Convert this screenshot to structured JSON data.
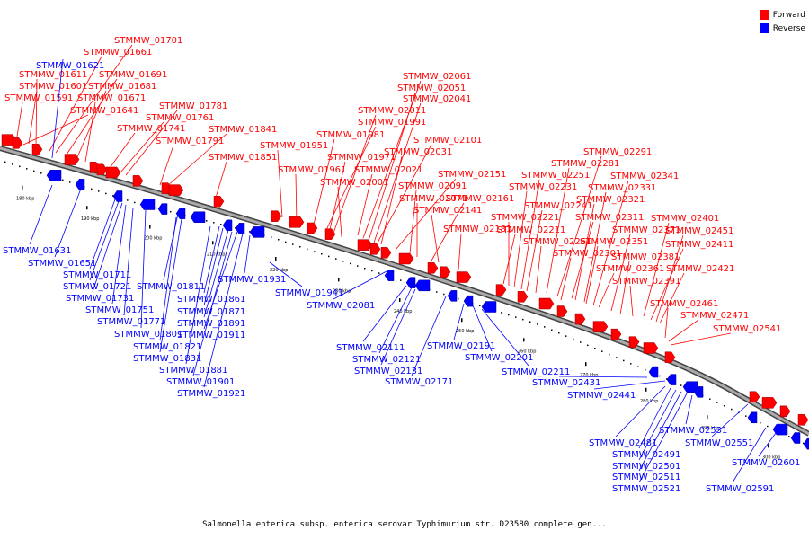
{
  "caption": "Salmonella enterica subsp. enterica serovar Typhimurium str. D23580 complete gen...",
  "legend": [
    {
      "label": "Forward",
      "color": "#ff0000"
    },
    {
      "label": "Reverse",
      "color": "#0000ff"
    }
  ],
  "colors": {
    "forward": "#ff0000",
    "reverse": "#0000ff",
    "backbone": "#888888"
  },
  "ticks": [
    "180 kbp",
    "190 kbp",
    "200 kbp",
    "210 kbp",
    "220 kbp",
    "230 kbp",
    "240 kbp",
    "250 kbp",
    "260 kbp",
    "270 kbp",
    "280 kbp",
    "290 kbp",
    "300 kbp"
  ],
  "forward_labels": [
    "STMMW_01701",
    "STMMW_01661",
    "STMMW_01691",
    "STMMW_01611",
    "STMMW_01681",
    "STMMW_01601",
    "STMMW_01671",
    "STMMW_01591",
    "STMMW_01641",
    "STMMW_01781",
    "STMMW_01761",
    "STMMW_01741",
    "STMMW_01841",
    "STMMW_01791",
    "STMMW_01851",
    "STMMW_02061",
    "STMMW_02051",
    "STMMW_02041",
    "STMMW_02011",
    "STMMW_01991",
    "STMMW_01981",
    "STMMW_01951",
    "STMMW_02101",
    "STMMW_02031",
    "STMMW_01971",
    "STMMW_01961",
    "STMMW_02021",
    "STMMW_02001",
    "STMMW_02151",
    "STMMW_02091",
    "STMMW_02071",
    "STMMW_02161",
    "STMMW_02141",
    "STMMW_02181",
    "STMMW_02291",
    "STMMW_02281",
    "STMMW_02251",
    "STMMW_02341",
    "STMMW_02231",
    "STMMW_02331",
    "STMMW_02321",
    "STMMW_02241",
    "STMMW_02221",
    "STMMW_02311",
    "STMMW_02401",
    "STMMW_02211",
    "STMMW_02371",
    "STMMW_02451",
    "STMMW_02261",
    "STMMW_02351",
    "STMMW_02411",
    "STMMW_02301",
    "STMMW_02381",
    "STMMW_02361",
    "STMMW_02421",
    "STMMW_02391",
    "STMMW_02461",
    "STMMW_02471",
    "STMMW_02541"
  ],
  "reverse_labels": [
    "STMMW_01621",
    "STMMW_01631",
    "STMMW_01651",
    "STMMW_01711",
    "STMMW_01721",
    "STMMW_01731",
    "STMMW_01751",
    "STMMW_01771",
    "STMMW_01801",
    "STMMW_01811",
    "STMMW_01821",
    "STMMW_01831",
    "STMMW_01861",
    "STMMW_01871",
    "STMMW_01881",
    "STMMW_01891",
    "STMMW_01901",
    "STMMW_01911",
    "STMMW_01921",
    "STMMW_01931",
    "STMMW_01941",
    "STMMW_02081",
    "STMMW_02111",
    "STMMW_02121",
    "STMMW_02131",
    "STMMW_02171",
    "STMMW_02191",
    "STMMW_02201",
    "STMMW_02211",
    "STMMW_02431",
    "STMMW_02441",
    "STMMW_02481",
    "STMMW_02491",
    "STMMW_02501",
    "STMMW_02511",
    "STMMW_02521",
    "STMMW_02531",
    "STMMW_02551",
    "STMMW_02591",
    "STMMW_02601"
  ]
}
